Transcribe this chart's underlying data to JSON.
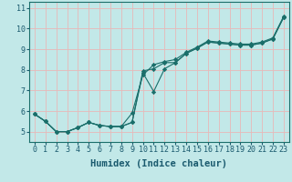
{
  "xlabel": "Humidex (Indice chaleur)",
  "background_color": "#c2e8e8",
  "grid_color": "#e8b8b8",
  "line_color": "#1a6e6a",
  "xlim": [
    -0.5,
    23.5
  ],
  "ylim": [
    4.5,
    11.3
  ],
  "xticks": [
    0,
    1,
    2,
    3,
    4,
    5,
    6,
    7,
    8,
    9,
    10,
    11,
    12,
    13,
    14,
    15,
    16,
    17,
    18,
    19,
    20,
    21,
    22,
    23
  ],
  "yticks": [
    5,
    6,
    7,
    8,
    9,
    10,
    11
  ],
  "series": [
    [
      5.85,
      5.5,
      5.0,
      5.0,
      5.2,
      5.45,
      5.3,
      5.25,
      5.25,
      5.45,
      7.95,
      8.05,
      8.35,
      8.35,
      8.8,
      9.05,
      9.35,
      9.3,
      9.25,
      9.2,
      9.2,
      9.3,
      9.5,
      10.55
    ],
    [
      5.85,
      5.5,
      5.0,
      5.0,
      5.2,
      5.45,
      5.3,
      5.25,
      5.25,
      5.45,
      7.85,
      6.95,
      8.05,
      8.35,
      8.8,
      9.05,
      9.35,
      9.3,
      9.25,
      9.2,
      9.2,
      9.3,
      9.5,
      10.55
    ],
    [
      5.85,
      5.5,
      5.0,
      5.0,
      5.2,
      5.45,
      5.3,
      5.25,
      5.25,
      5.9,
      7.75,
      8.25,
      8.4,
      8.5,
      8.85,
      9.1,
      9.4,
      9.35,
      9.3,
      9.25,
      9.25,
      9.35,
      9.55,
      10.6
    ]
  ],
  "marker": "D",
  "markersize": 2.2,
  "linewidth": 0.8,
  "font_color": "#1a5a6e",
  "xlabel_fontsize": 7.5,
  "tick_fontsize": 6.0
}
